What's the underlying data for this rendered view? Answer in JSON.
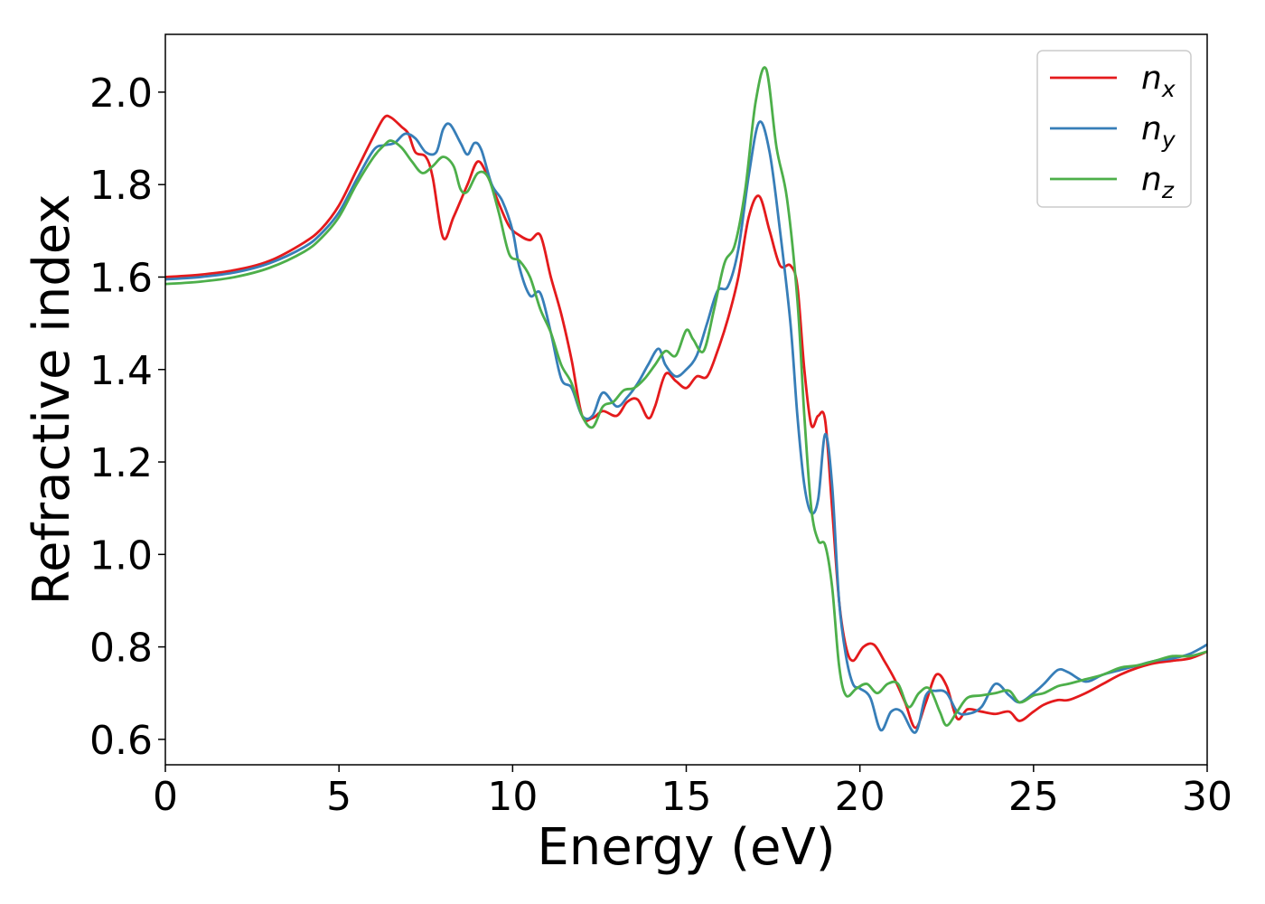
{
  "chart_data": {
    "type": "line",
    "title": "",
    "xlabel": "Energy (eV)",
    "ylabel": "Refractive index",
    "xlim": [
      0,
      30
    ],
    "ylim": [
      0.545,
      2.125
    ],
    "xticks": [
      0,
      5,
      10,
      15,
      20,
      25,
      30
    ],
    "yticks": [
      0.6,
      0.8,
      1.0,
      1.2,
      1.4,
      1.6,
      1.8,
      2.0
    ],
    "xtick_labels": [
      "0",
      "5",
      "10",
      "15",
      "20",
      "25",
      "30"
    ],
    "ytick_labels": [
      "0.6",
      "0.8",
      "1.0",
      "1.2",
      "1.4",
      "1.6",
      "1.8",
      "2.0"
    ],
    "grid": false,
    "legend_position": "top-right",
    "series": [
      {
        "name": "n_x",
        "label_main": "n",
        "label_sub": "x",
        "color": "#e41a1c",
        "x": [
          0,
          1,
          2,
          3,
          4,
          4.5,
          5,
          5.5,
          6,
          6.3,
          6.5,
          6.8,
          7,
          7.2,
          7.5,
          7.7,
          8,
          8.3,
          8.7,
          9,
          9.3,
          9.6,
          9.9,
          10.2,
          10.5,
          10.8,
          11.1,
          11.4,
          11.7,
          12,
          12.3,
          12.6,
          13,
          13.3,
          13.6,
          13.9,
          14.1,
          14.4,
          14.7,
          15,
          15.3,
          15.6,
          15.9,
          16.2,
          16.5,
          16.8,
          17.1,
          17.4,
          17.7,
          18,
          18.2,
          18.4,
          18.6,
          18.8,
          19,
          19.2,
          19.4,
          19.6,
          19.8,
          20.1,
          20.4,
          20.7,
          21,
          21.3,
          21.6,
          21.9,
          22.2,
          22.5,
          22.8,
          23.1,
          23.5,
          23.9,
          24.3,
          24.6,
          25,
          25.3,
          25.7,
          26,
          26.5,
          27,
          27.5,
          28,
          28.5,
          29,
          29.5,
          30
        ],
        "y": [
          1.6,
          1.605,
          1.615,
          1.635,
          1.675,
          1.705,
          1.755,
          1.83,
          1.905,
          1.945,
          1.945,
          1.925,
          1.91,
          1.87,
          1.86,
          1.815,
          1.685,
          1.73,
          1.8,
          1.85,
          1.815,
          1.76,
          1.71,
          1.69,
          1.68,
          1.69,
          1.6,
          1.52,
          1.42,
          1.3,
          1.295,
          1.31,
          1.3,
          1.33,
          1.335,
          1.295,
          1.32,
          1.39,
          1.375,
          1.36,
          1.385,
          1.385,
          1.44,
          1.51,
          1.6,
          1.73,
          1.775,
          1.7,
          1.625,
          1.625,
          1.58,
          1.4,
          1.28,
          1.3,
          1.29,
          1.1,
          0.9,
          0.8,
          0.77,
          0.8,
          0.805,
          0.77,
          0.73,
          0.68,
          0.625,
          0.68,
          0.74,
          0.715,
          0.645,
          0.665,
          0.66,
          0.655,
          0.66,
          0.64,
          0.66,
          0.675,
          0.685,
          0.685,
          0.7,
          0.72,
          0.74,
          0.755,
          0.765,
          0.77,
          0.775,
          0.79
        ]
      },
      {
        "name": "n_y",
        "label_main": "n",
        "label_sub": "y",
        "color": "#377eb8",
        "x": [
          0,
          1,
          2,
          3,
          4,
          4.5,
          5,
          5.5,
          6,
          6.3,
          6.6,
          6.9,
          7.2,
          7.5,
          7.8,
          8,
          8.2,
          8.5,
          8.7,
          8.9,
          9.1,
          9.4,
          9.7,
          10,
          10.2,
          10.5,
          10.8,
          11.1,
          11.4,
          11.7,
          12,
          12.3,
          12.6,
          13,
          13.3,
          13.6,
          13.9,
          14.2,
          14.4,
          14.7,
          15,
          15.3,
          15.6,
          15.9,
          16.2,
          16.5,
          16.8,
          17.1,
          17.4,
          17.7,
          18,
          18.2,
          18.4,
          18.6,
          18.8,
          19,
          19.2,
          19.4,
          19.6,
          19.8,
          20,
          20.3,
          20.6,
          20.9,
          21.2,
          21.6,
          21.9,
          22.2,
          22.5,
          22.8,
          23.1,
          23.5,
          23.9,
          24.3,
          24.6,
          25,
          25.3,
          25.7,
          26,
          26.5,
          27,
          27.5,
          28,
          28.5,
          29,
          29.5,
          30
        ],
        "y": [
          1.595,
          1.6,
          1.61,
          1.63,
          1.665,
          1.695,
          1.74,
          1.81,
          1.875,
          1.885,
          1.89,
          1.91,
          1.9,
          1.87,
          1.87,
          1.92,
          1.93,
          1.89,
          1.865,
          1.89,
          1.875,
          1.8,
          1.765,
          1.7,
          1.62,
          1.56,
          1.565,
          1.48,
          1.38,
          1.36,
          1.3,
          1.3,
          1.35,
          1.32,
          1.34,
          1.37,
          1.41,
          1.445,
          1.41,
          1.385,
          1.4,
          1.43,
          1.5,
          1.57,
          1.58,
          1.66,
          1.82,
          1.935,
          1.87,
          1.7,
          1.5,
          1.3,
          1.15,
          1.09,
          1.12,
          1.26,
          1.15,
          0.9,
          0.78,
          0.72,
          0.71,
          0.69,
          0.62,
          0.66,
          0.66,
          0.615,
          0.695,
          0.705,
          0.7,
          0.66,
          0.655,
          0.67,
          0.72,
          0.695,
          0.68,
          0.7,
          0.72,
          0.75,
          0.745,
          0.725,
          0.74,
          0.75,
          0.76,
          0.77,
          0.775,
          0.785,
          0.805
        ]
      },
      {
        "name": "n_z",
        "label_main": "n",
        "label_sub": "z",
        "color": "#4daf4a",
        "x": [
          0,
          1,
          2,
          3,
          4,
          4.5,
          5,
          5.5,
          6,
          6.3,
          6.5,
          6.8,
          7.1,
          7.4,
          7.7,
          8,
          8.3,
          8.5,
          8.7,
          9,
          9.3,
          9.6,
          9.9,
          10.2,
          10.5,
          10.8,
          11.1,
          11.4,
          11.7,
          12,
          12.3,
          12.6,
          12.9,
          13.2,
          13.5,
          13.8,
          14.1,
          14.4,
          14.7,
          15,
          15.2,
          15.5,
          15.8,
          16.1,
          16.4,
          16.7,
          17,
          17.3,
          17.6,
          17.9,
          18.2,
          18.4,
          18.6,
          18.8,
          19,
          19.2,
          19.4,
          19.6,
          19.9,
          20.2,
          20.5,
          20.8,
          21.1,
          21.4,
          21.7,
          22,
          22.3,
          22.5,
          22.8,
          23.1,
          23.5,
          23.9,
          24.3,
          24.6,
          25,
          25.3,
          25.7,
          26,
          26.5,
          27,
          27.5,
          28,
          28.5,
          29,
          29.5,
          30
        ],
        "y": [
          1.585,
          1.59,
          1.6,
          1.62,
          1.655,
          1.685,
          1.73,
          1.8,
          1.86,
          1.885,
          1.895,
          1.88,
          1.85,
          1.825,
          1.84,
          1.86,
          1.84,
          1.79,
          1.785,
          1.825,
          1.815,
          1.74,
          1.65,
          1.635,
          1.6,
          1.53,
          1.48,
          1.41,
          1.37,
          1.3,
          1.275,
          1.32,
          1.33,
          1.355,
          1.36,
          1.38,
          1.41,
          1.44,
          1.43,
          1.485,
          1.465,
          1.44,
          1.53,
          1.63,
          1.67,
          1.79,
          1.98,
          2.05,
          1.88,
          1.77,
          1.55,
          1.3,
          1.1,
          1.03,
          1.02,
          0.93,
          0.76,
          0.695,
          0.71,
          0.72,
          0.7,
          0.72,
          0.72,
          0.67,
          0.7,
          0.71,
          0.66,
          0.63,
          0.66,
          0.69,
          0.695,
          0.7,
          0.705,
          0.68,
          0.695,
          0.7,
          0.715,
          0.72,
          0.73,
          0.74,
          0.755,
          0.76,
          0.77,
          0.78,
          0.78,
          0.79
        ]
      }
    ]
  }
}
